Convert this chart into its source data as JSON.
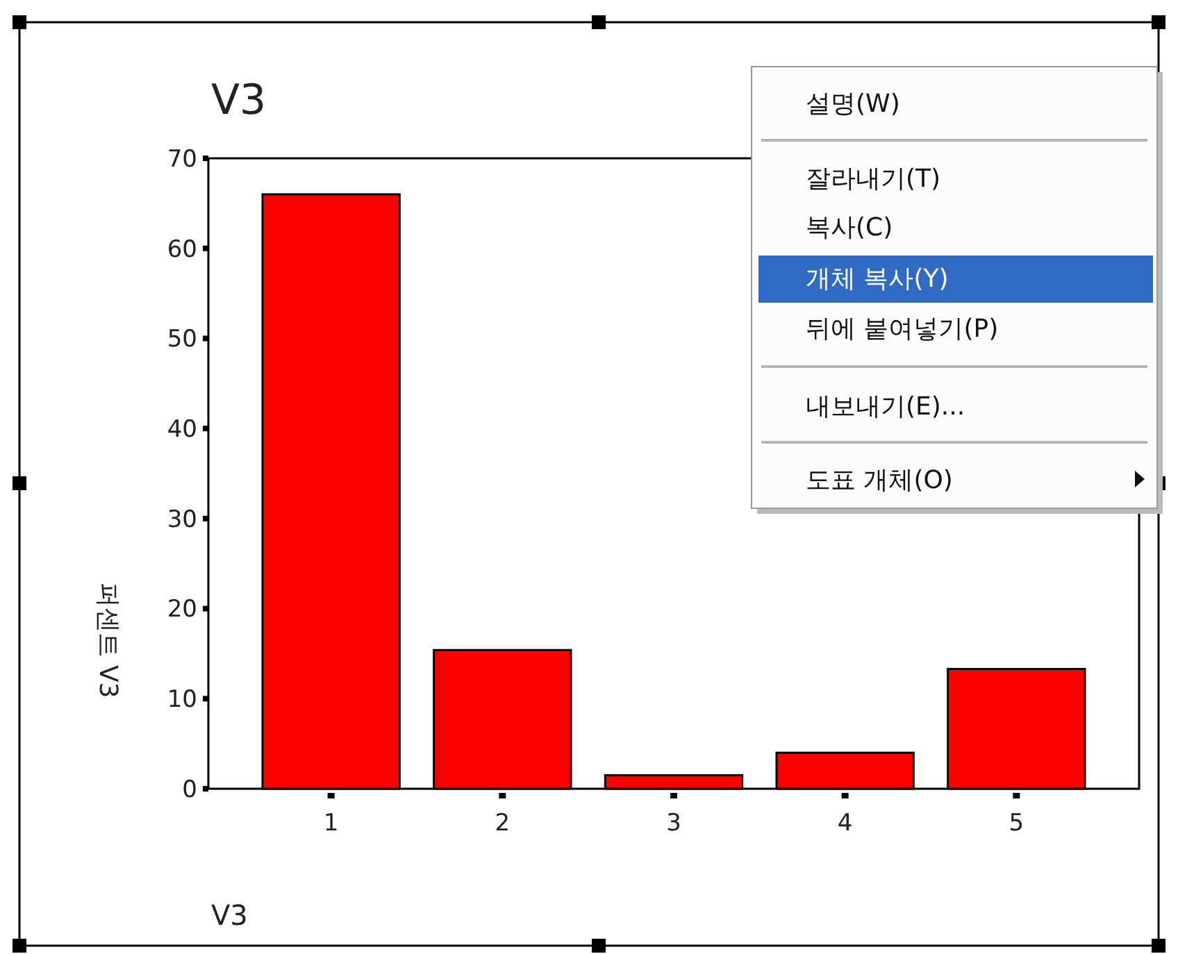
{
  "chart_data": {
    "type": "bar",
    "title": "V3",
    "xlabel": "V3",
    "ylabel": "퍼센트 V3",
    "categories": [
      "1",
      "2",
      "3",
      "4",
      "5"
    ],
    "values": [
      66,
      15.4,
      1.5,
      4,
      13.3
    ],
    "color": "#ff0000",
    "ylim": [
      0,
      70
    ],
    "yticks": [
      0,
      10,
      20,
      30,
      40,
      50,
      60,
      70
    ],
    "grid": false,
    "annotations": [
      "설명(W)",
      "잘라내기(T)",
      "복사(C)",
      "개체 복사(Y)",
      "뒤에 붙여넣기(P)",
      "내보내기(E)...",
      "도표 개체(O)"
    ]
  }
}
